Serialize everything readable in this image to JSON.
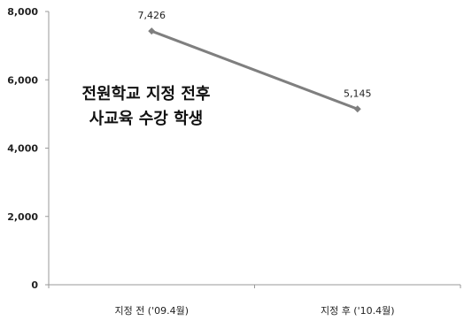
{
  "chart_data": {
    "type": "line",
    "categories": [
      "지정 전 ('09.4월)",
      "지정 후 ('10.4월)"
    ],
    "series": [
      {
        "values": [
          7426,
          5145
        ],
        "data_labels": [
          "7,426",
          "5,145"
        ]
      }
    ],
    "ylim": [
      0,
      8000
    ],
    "yticks": [
      "0",
      "2,000",
      "4,000",
      "6,000",
      "8,000"
    ],
    "ytick_values": [
      0,
      2000,
      4000,
      6000,
      8000
    ],
    "annotation": [
      "전원학교 지정 전후",
      "사교육 수강 학생"
    ],
    "grid": false,
    "line_color": "#7f7f7f",
    "axis_color": "#9a9a9a"
  }
}
